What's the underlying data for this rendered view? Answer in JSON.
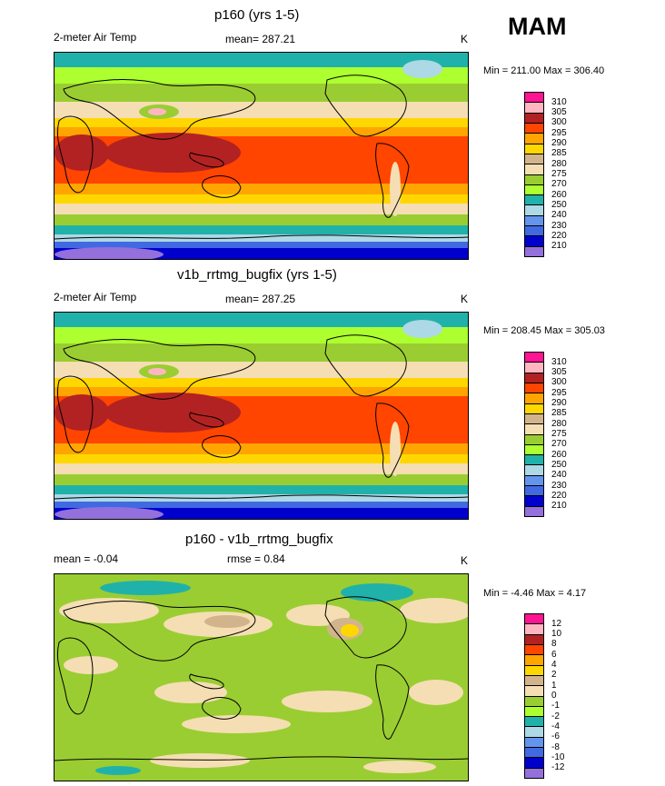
{
  "season": "MAM",
  "panels": [
    {
      "title": "p160 (yrs 1-5)",
      "left_label": "2-meter Air Temp",
      "mean_label": "mean= 287.21",
      "rmse_label": "",
      "units": "K",
      "minmax": "Min = 211.00 Max = 306.40",
      "colorbar": {
        "labels": [
          "310",
          "305",
          "300",
          "295",
          "290",
          "285",
          "280",
          "275",
          "270",
          "260",
          "250",
          "240",
          "230",
          "220",
          "210"
        ],
        "colors": [
          "#ff1493",
          "#ffb6c1",
          "#b22222",
          "#ff4500",
          "#ffa500",
          "#ffd700",
          "#d2b48c",
          "#f5deb3",
          "#9acd32",
          "#adff2f",
          "#20b2aa",
          "#add8e6",
          "#6495ed",
          "#4169e1",
          "#0000cd",
          "#9370db"
        ]
      }
    },
    {
      "title": "v1b_rrtmg_bugfix (yrs 1-5)",
      "left_label": "2-meter Air Temp",
      "mean_label": "mean= 287.25",
      "rmse_label": "",
      "units": "K",
      "minmax": "Min = 208.45 Max = 305.03",
      "colorbar": {
        "labels": [
          "310",
          "305",
          "300",
          "295",
          "290",
          "285",
          "280",
          "275",
          "270",
          "260",
          "250",
          "240",
          "230",
          "220",
          "210"
        ],
        "colors": [
          "#ff1493",
          "#ffb6c1",
          "#b22222",
          "#ff4500",
          "#ffa500",
          "#ffd700",
          "#d2b48c",
          "#f5deb3",
          "#9acd32",
          "#adff2f",
          "#20b2aa",
          "#add8e6",
          "#6495ed",
          "#4169e1",
          "#0000cd",
          "#9370db"
        ]
      }
    },
    {
      "title": "p160 - v1b_rrtmg_bugfix",
      "left_label": "mean =  -0.04",
      "mean_label": "",
      "rmse_label": "rmse =   0.84",
      "units": "K",
      "minmax": "Min =  -4.46 Max =   4.17",
      "colorbar": {
        "labels": [
          "12",
          "10",
          "8",
          "6",
          "4",
          "2",
          "1",
          "0",
          "-1",
          "-2",
          "-4",
          "-6",
          "-8",
          "-10",
          "-12"
        ],
        "colors": [
          "#ff1493",
          "#ffb6c1",
          "#b22222",
          "#ff4500",
          "#ffa500",
          "#ffd700",
          "#d2b48c",
          "#f5deb3",
          "#9acd32",
          "#adff2f",
          "#20b2aa",
          "#add8e6",
          "#6495ed",
          "#4169e1",
          "#0000cd",
          "#9370db"
        ]
      }
    }
  ],
  "chart_data": [
    {
      "type": "heatmap",
      "title": "p160 (yrs 1-5)",
      "variable": "2-meter Air Temp",
      "units": "K",
      "mean": 287.21,
      "min": 211.0,
      "max": 306.4,
      "contour_levels": [
        210,
        220,
        230,
        240,
        250,
        260,
        270,
        275,
        280,
        285,
        290,
        295,
        300,
        305,
        310
      ],
      "zonal_band_values_north_to_south": [
        255,
        265,
        272,
        280,
        287,
        295,
        300,
        298,
        290,
        282,
        270,
        250,
        225
      ]
    },
    {
      "type": "heatmap",
      "title": "v1b_rrtmg_bugfix (yrs 1-5)",
      "variable": "2-meter Air Temp",
      "units": "K",
      "mean": 287.25,
      "min": 208.45,
      "max": 305.03,
      "contour_levels": [
        210,
        220,
        230,
        240,
        250,
        260,
        270,
        275,
        280,
        285,
        290,
        295,
        300,
        305,
        310
      ],
      "zonal_band_values_north_to_south": [
        255,
        265,
        272,
        280,
        287,
        295,
        300,
        298,
        290,
        282,
        270,
        250,
        225
      ]
    },
    {
      "type": "heatmap",
      "title": "p160 - v1b_rrtmg_bugfix",
      "units": "K",
      "mean": -0.04,
      "rmse": 0.84,
      "min": -4.46,
      "max": 4.17,
      "contour_levels": [
        -12,
        -10,
        -8,
        -6,
        -4,
        -2,
        -1,
        0,
        1,
        2,
        4,
        6,
        8,
        10,
        12
      ]
    }
  ]
}
